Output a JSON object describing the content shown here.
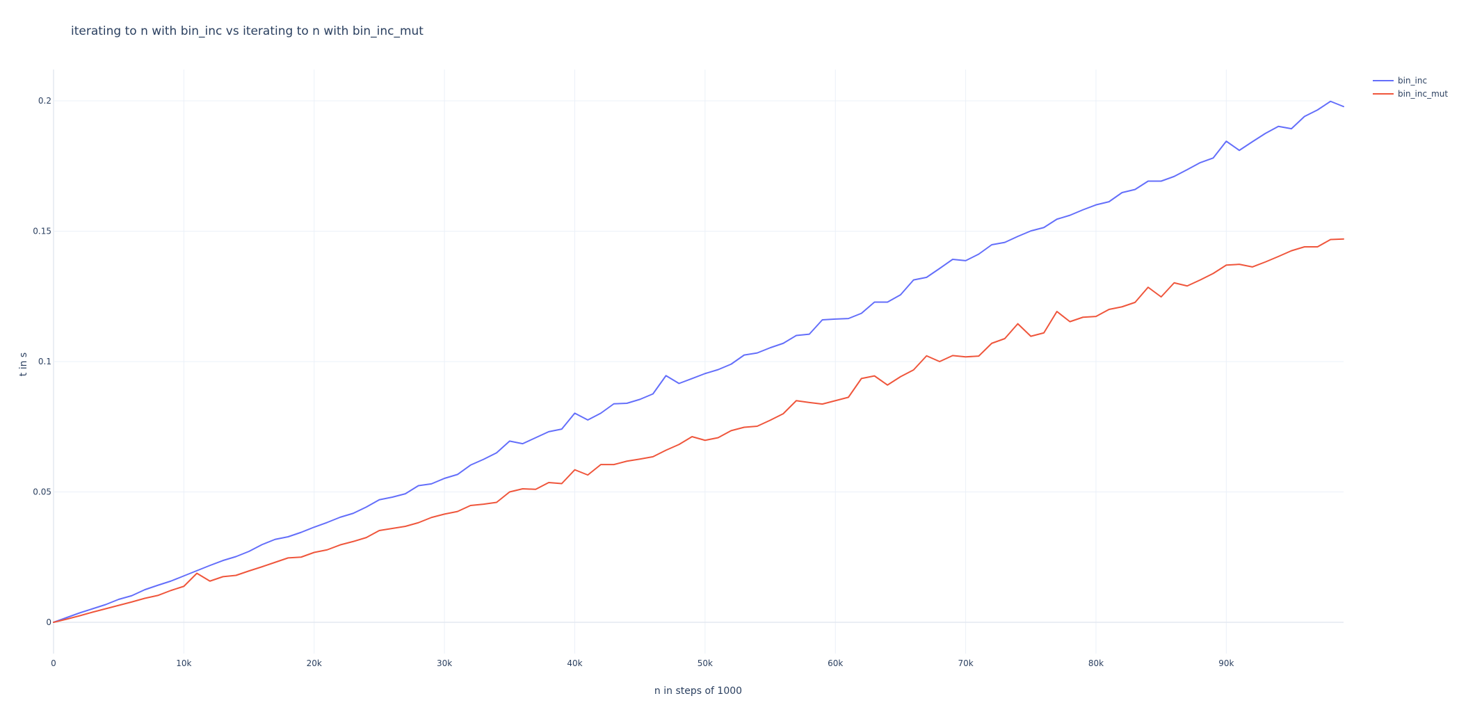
{
  "chart_data": {
    "type": "line",
    "title": "iterating to n with bin_inc vs iterating to n with bin_inc_mut",
    "xlabel": "n in steps of 1000",
    "ylabel": "t in s",
    "xlim": [
      0,
      99000
    ],
    "ylim": [
      -0.012,
      0.212
    ],
    "x_ticks": [
      0,
      10000,
      20000,
      30000,
      40000,
      50000,
      60000,
      70000,
      80000,
      90000
    ],
    "x_tick_labels": [
      "0",
      "10k",
      "20k",
      "30k",
      "40k",
      "50k",
      "60k",
      "70k",
      "80k",
      "90k"
    ],
    "y_ticks": [
      0,
      0.05,
      0.1,
      0.15,
      0.2
    ],
    "y_tick_labels": [
      "0",
      "0.05",
      "0.1",
      "0.15",
      "0.2"
    ],
    "grid": true,
    "legend_position": "top-right",
    "x_start": 0,
    "x_step": 1000,
    "series": [
      {
        "name": "bin_inc",
        "color": "#636efa",
        "values": [
          0,
          0.0018,
          0.0036,
          0.0052,
          0.0068,
          0.0088,
          0.0102,
          0.0125,
          0.0142,
          0.0158,
          0.0178,
          0.0198,
          0.0218,
          0.0237,
          0.0252,
          0.0272,
          0.0298,
          0.0318,
          0.0328,
          0.0345,
          0.0365,
          0.0383,
          0.0403,
          0.0418,
          0.0442,
          0.047,
          0.048,
          0.0493,
          0.0524,
          0.0531,
          0.0552,
          0.0567,
          0.0603,
          0.0625,
          0.065,
          0.0695,
          0.0685,
          0.0708,
          0.0731,
          0.0741,
          0.0802,
          0.0776,
          0.0802,
          0.0838,
          0.084,
          0.0855,
          0.0876,
          0.0946,
          0.0916,
          0.0935,
          0.0954,
          0.0969,
          0.099,
          0.1025,
          0.1033,
          0.1053,
          0.107,
          0.11,
          0.1105,
          0.116,
          0.1163,
          0.1165,
          0.1185,
          0.1228,
          0.1228,
          0.1256,
          0.1313,
          0.1323,
          0.1357,
          0.1392,
          0.1387,
          0.1412,
          0.1448,
          0.1457,
          0.148,
          0.1501,
          0.1514,
          0.1546,
          0.1561,
          0.1582,
          0.1601,
          0.1613,
          0.1648,
          0.166,
          0.1692,
          0.1692,
          0.171,
          0.1736,
          0.1763,
          0.1781,
          0.1845,
          0.181,
          0.1843,
          0.1875,
          0.1902,
          0.1893,
          0.194,
          0.1965,
          0.1998,
          0.1978
        ]
      },
      {
        "name": "bin_inc_mut",
        "color": "#ef553b",
        "values": [
          0,
          0.0012,
          0.0025,
          0.0039,
          0.0052,
          0.0065,
          0.0078,
          0.0092,
          0.0103,
          0.0122,
          0.0138,
          0.0188,
          0.0158,
          0.0175,
          0.018,
          0.0197,
          0.0213,
          0.023,
          0.0247,
          0.025,
          0.0268,
          0.0278,
          0.0297,
          0.031,
          0.0325,
          0.0352,
          0.036,
          0.0368,
          0.0382,
          0.0402,
          0.0415,
          0.0425,
          0.0448,
          0.0453,
          0.046,
          0.05,
          0.0512,
          0.051,
          0.0536,
          0.0532,
          0.0585,
          0.0565,
          0.0605,
          0.0605,
          0.0618,
          0.0626,
          0.0635,
          0.066,
          0.0682,
          0.0712,
          0.0698,
          0.0708,
          0.0735,
          0.0748,
          0.0752,
          0.0775,
          0.08,
          0.085,
          0.0843,
          0.0837,
          0.085,
          0.0863,
          0.0935,
          0.0945,
          0.091,
          0.0942,
          0.0968,
          0.1022,
          0.1,
          0.1023,
          0.1018,
          0.1021,
          0.107,
          0.1088,
          0.1145,
          0.1097,
          0.111,
          0.1192,
          0.1153,
          0.117,
          0.1173,
          0.12,
          0.121,
          0.1227,
          0.1285,
          0.1248,
          0.1302,
          0.129,
          0.1313,
          0.1338,
          0.137,
          0.1373,
          0.1363,
          0.1382,
          0.1403,
          0.1425,
          0.144,
          0.144,
          0.1468,
          0.147
        ]
      }
    ]
  }
}
